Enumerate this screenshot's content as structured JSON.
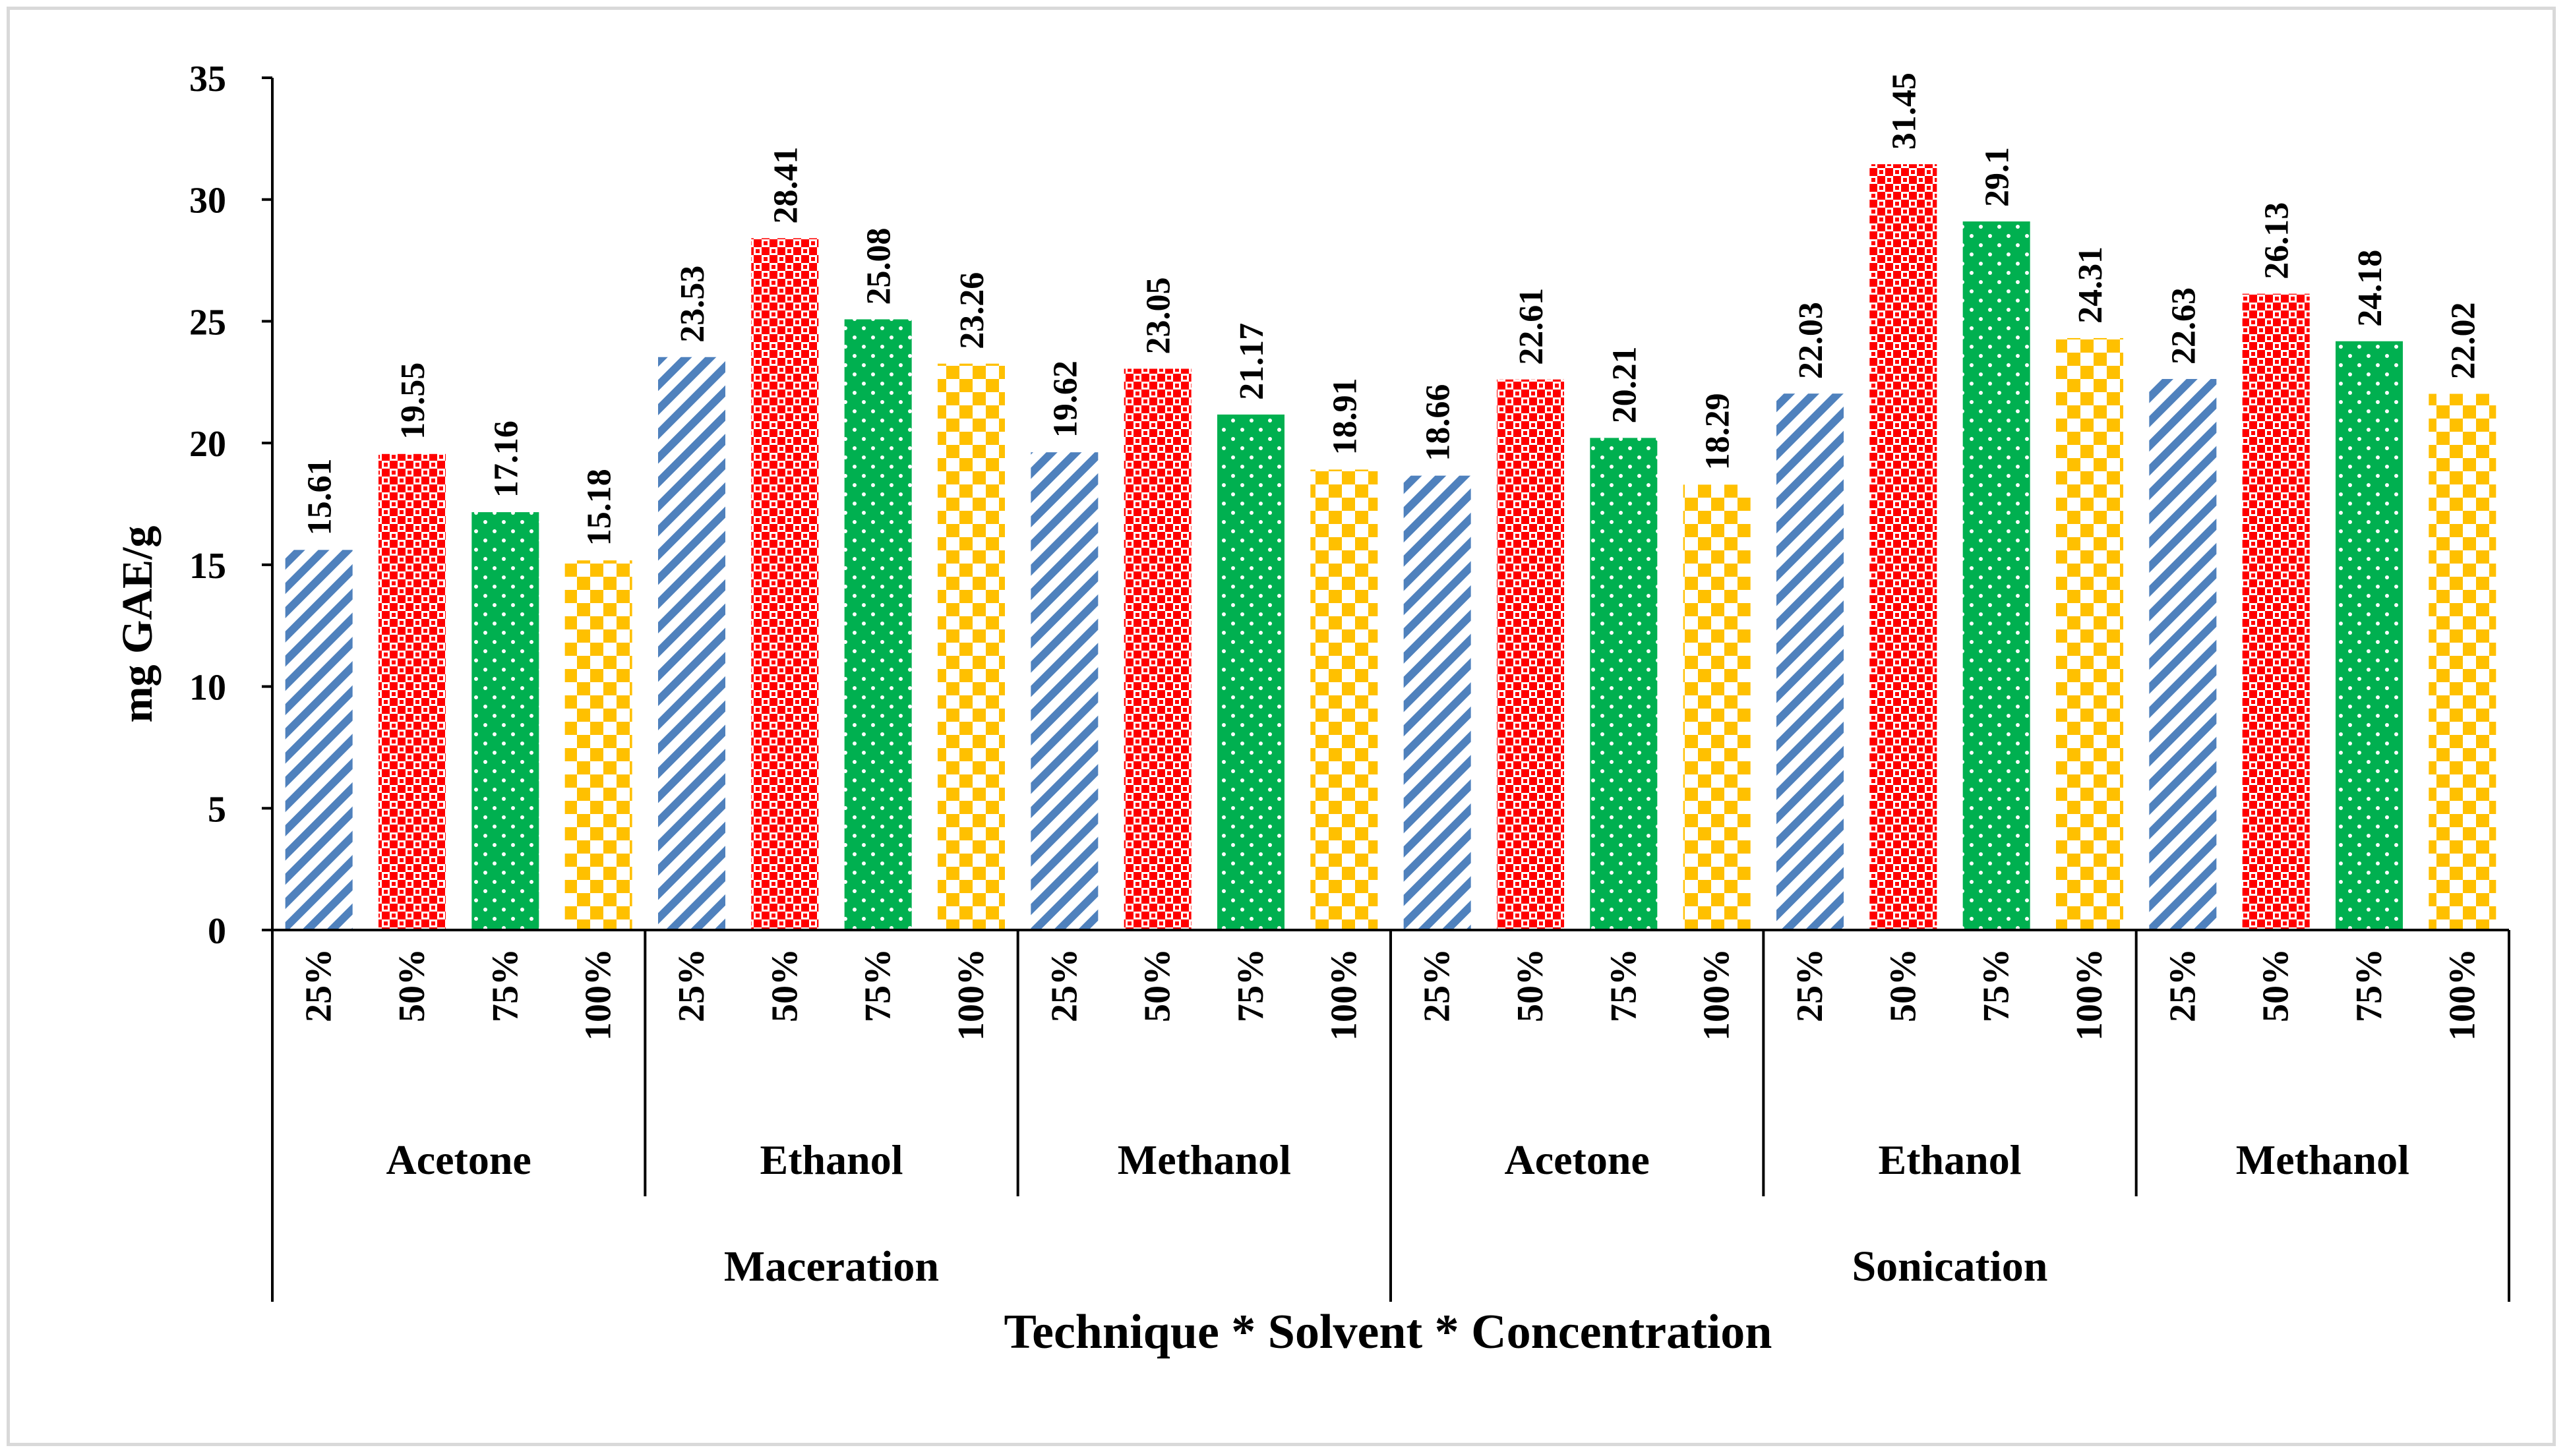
{
  "chart_data": {
    "type": "bar",
    "title": "",
    "xlabel": "Technique * Solvent * Concentration",
    "ylabel": "mg GAE/g",
    "ylim": [
      0,
      35
    ],
    "yticks": [
      0,
      5,
      10,
      15,
      20,
      25,
      30,
      35
    ],
    "grid": false,
    "legend": "none",
    "techniques": [
      "Maceration",
      "Sonication"
    ],
    "solvents": [
      "Acetone",
      "Ethanol",
      "Methanol"
    ],
    "concentrations": [
      "25%",
      "50%",
      "75%",
      "100%"
    ],
    "series": [
      {
        "name": "25%",
        "color": "#4f81bd",
        "pattern": "diagonal-stripes",
        "values": [
          15.61,
          23.53,
          19.62,
          18.66,
          22.03,
          22.63
        ]
      },
      {
        "name": "50%",
        "color": "#ff0000",
        "pattern": "checker",
        "values": [
          19.55,
          28.41,
          23.05,
          22.61,
          31.45,
          26.13
        ]
      },
      {
        "name": "75%",
        "color": "#00b050",
        "pattern": "dots",
        "values": [
          17.16,
          25.08,
          21.17,
          20.21,
          29.1,
          24.18
        ]
      },
      {
        "name": "100%",
        "color": "#ffc000",
        "pattern": "large-checker",
        "values": [
          15.18,
          23.26,
          18.91,
          18.29,
          24.31,
          22.02
        ]
      }
    ],
    "groups": [
      {
        "technique": "Maceration",
        "solvent": "Acetone"
      },
      {
        "technique": "Maceration",
        "solvent": "Ethanol"
      },
      {
        "technique": "Maceration",
        "solvent": "Methanol"
      },
      {
        "technique": "Sonication",
        "solvent": "Acetone"
      },
      {
        "technique": "Sonication",
        "solvent": "Ethanol"
      },
      {
        "technique": "Sonication",
        "solvent": "Methanol"
      }
    ]
  }
}
